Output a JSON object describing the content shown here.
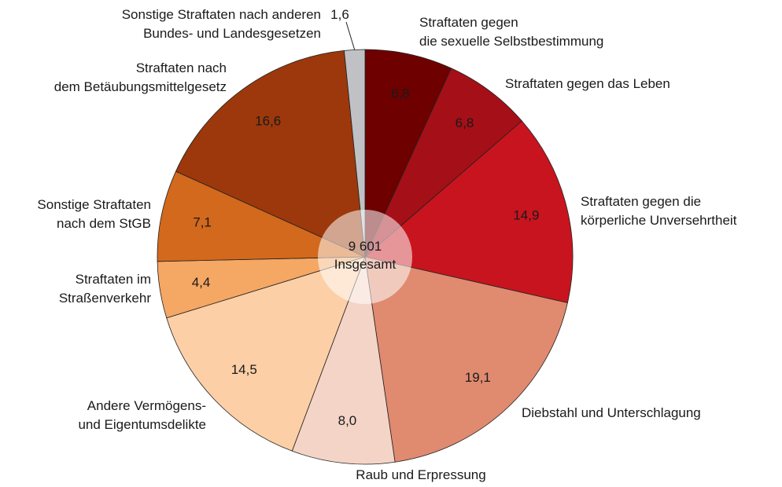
{
  "chart_data": {
    "type": "pie",
    "center_label": "9 601",
    "center_caption": "Insgesamt",
    "categories": [
      "Straftaten gegen\ndie sexuelle Selbstbestimmung",
      "Straftaten gegen das Leben",
      "Straftaten gegen die\nkörperliche Unversehrtheit",
      "Diebstahl und Unterschlagung",
      "Raub und Erpressung",
      "Andere Vermögens-\nund Eigentumsdelikte",
      "Straftaten im\nStraßenverkehr",
      "Sonstige Straftaten\nnach dem StGB",
      "Straftaten nach\ndem Betäubungsmittelgesetz",
      "Sonstige Straftaten nach anderen\nBundes- und Landesgesetzen"
    ],
    "values": [
      6.8,
      6.8,
      14.9,
      19.1,
      8.0,
      14.5,
      4.4,
      7.1,
      16.6,
      1.6
    ],
    "value_labels": [
      "6,8",
      "6,8",
      "14,9",
      "19,1",
      "8,0",
      "14,5",
      "4,4",
      "7,1",
      "16,6",
      "1,6"
    ],
    "colors": [
      "#6e0000",
      "#a50f17",
      "#c8141e",
      "#e08a70",
      "#f4d4c6",
      "#fdcfa6",
      "#f5a764",
      "#d2691c",
      "#9c380b",
      "#c0c1c5"
    ]
  }
}
